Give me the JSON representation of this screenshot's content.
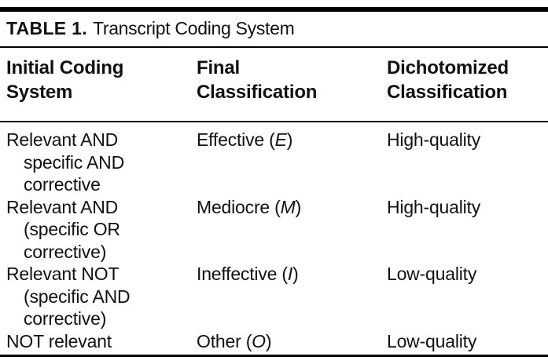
{
  "table": {
    "label": "TABLE 1.",
    "title": "Transcript Coding System",
    "columns": [
      {
        "lines": [
          "Initial Coding",
          "System"
        ]
      },
      {
        "lines": [
          "Final",
          "Classification"
        ]
      },
      {
        "lines": [
          "Dichotomized",
          "Classification"
        ]
      }
    ],
    "rows": [
      {
        "initial_lines": [
          "Relevant AND",
          "specific AND",
          "corrective"
        ],
        "final": {
          "prefix": "Effective (",
          "code": "E",
          "suffix": ")"
        },
        "dichotomized": "High-quality"
      },
      {
        "initial_lines": [
          "Relevant AND",
          "(specific OR",
          "corrective)"
        ],
        "final": {
          "prefix": "Mediocre (",
          "code": "M",
          "suffix": ")"
        },
        "dichotomized": "High-quality"
      },
      {
        "initial_lines": [
          "Relevant NOT",
          "(specific AND",
          "corrective)"
        ],
        "final": {
          "prefix": "Ineffective (",
          "code": "I",
          "suffix": ")"
        },
        "dichotomized": "Low-quality"
      },
      {
        "initial_lines": [
          "NOT relevant"
        ],
        "final": {
          "prefix": "Other (",
          "code": "O",
          "suffix": ")"
        },
        "dichotomized": "Low-quality"
      }
    ],
    "colors": {
      "text": "#111111",
      "rule": "#000000",
      "background": "#ffffff"
    }
  }
}
